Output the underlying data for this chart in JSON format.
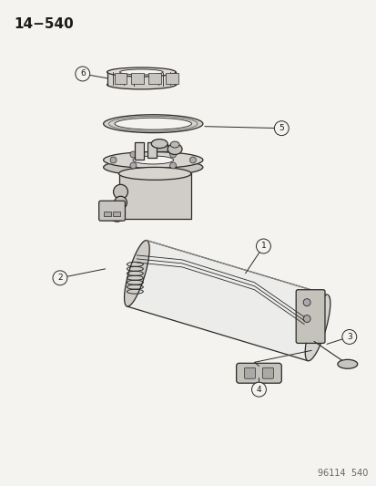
{
  "title": "14−540",
  "footer": "96114  540",
  "bg_color": "#f5f3ef",
  "line_color": "#2a2a2a",
  "label_color": "#1a1a1a",
  "fig_w": 4.14,
  "fig_h": 5.33,
  "dpi": 100,
  "title_fontsize": 11,
  "footer_fontsize": 7,
  "callout_r": 0.015,
  "callout_fontsize": 6.5
}
